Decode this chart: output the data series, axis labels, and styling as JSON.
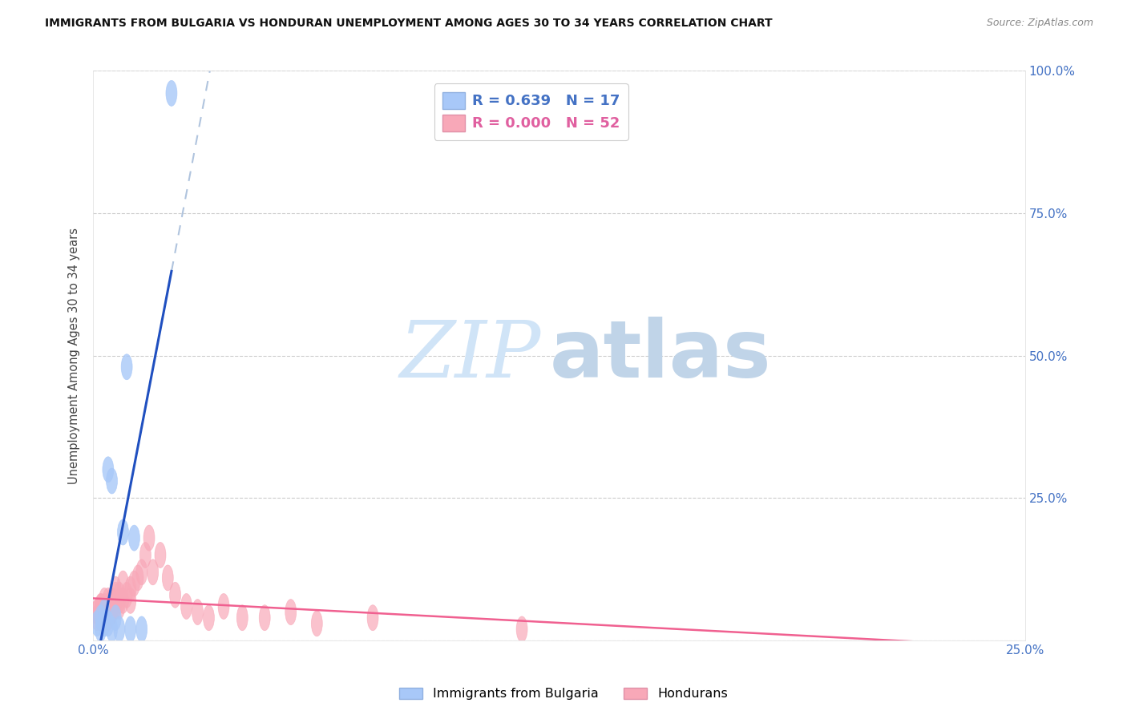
{
  "title": "IMMIGRANTS FROM BULGARIA VS HONDURAN UNEMPLOYMENT AMONG AGES 30 TO 34 YEARS CORRELATION CHART",
  "source": "Source: ZipAtlas.com",
  "ylabel": "Unemployment Among Ages 30 to 34 years",
  "xlim": [
    0.0,
    0.25
  ],
  "ylim": [
    0.0,
    1.0
  ],
  "xtick_positions": [
    0.0,
    0.05,
    0.1,
    0.15,
    0.2,
    0.25
  ],
  "xtick_labels": [
    "0.0%",
    "",
    "",
    "",
    "",
    "25.0%"
  ],
  "ytick_positions": [
    0.0,
    0.25,
    0.5,
    0.75,
    1.0
  ],
  "ytick_labels_right": [
    "",
    "25.0%",
    "50.0%",
    "75.0%",
    "100.0%"
  ],
  "legend_R1": "0.639",
  "legend_N1": "17",
  "legend_R2": "0.000",
  "legend_N2": "52",
  "bulgaria_color": "#a8c8f8",
  "honduran_color": "#f8a8b8",
  "regression_blue_color": "#2050c0",
  "regression_pink_color": "#f06090",
  "regression_dashed_color": "#b0c4de",
  "bg_color": "#ffffff",
  "grid_color": "#cccccc",
  "bulgaria_x": [
    0.001,
    0.002,
    0.002,
    0.003,
    0.003,
    0.004,
    0.004,
    0.005,
    0.005,
    0.006,
    0.007,
    0.008,
    0.009,
    0.01,
    0.011,
    0.013,
    0.021
  ],
  "bulgaria_y": [
    0.03,
    0.02,
    0.04,
    0.05,
    0.03,
    0.03,
    0.3,
    0.28,
    0.02,
    0.04,
    0.02,
    0.19,
    0.48,
    0.02,
    0.18,
    0.02,
    0.96
  ],
  "honduran_x": [
    0.001,
    0.001,
    0.001,
    0.002,
    0.002,
    0.002,
    0.002,
    0.002,
    0.003,
    0.003,
    0.003,
    0.003,
    0.003,
    0.004,
    0.004,
    0.004,
    0.004,
    0.005,
    0.005,
    0.005,
    0.005,
    0.005,
    0.006,
    0.006,
    0.006,
    0.007,
    0.007,
    0.007,
    0.008,
    0.008,
    0.009,
    0.01,
    0.01,
    0.011,
    0.012,
    0.013,
    0.014,
    0.015,
    0.016,
    0.018,
    0.02,
    0.022,
    0.025,
    0.028,
    0.031,
    0.035,
    0.04,
    0.046,
    0.053,
    0.06,
    0.075,
    0.115
  ],
  "honduran_y": [
    0.05,
    0.04,
    0.05,
    0.06,
    0.04,
    0.05,
    0.06,
    0.04,
    0.05,
    0.07,
    0.06,
    0.05,
    0.04,
    0.06,
    0.04,
    0.07,
    0.05,
    0.05,
    0.07,
    0.06,
    0.05,
    0.07,
    0.08,
    0.06,
    0.09,
    0.07,
    0.06,
    0.08,
    0.1,
    0.07,
    0.08,
    0.09,
    0.07,
    0.1,
    0.11,
    0.12,
    0.15,
    0.18,
    0.12,
    0.15,
    0.11,
    0.08,
    0.06,
    0.05,
    0.04,
    0.06,
    0.04,
    0.04,
    0.05,
    0.03,
    0.04,
    0.02
  ]
}
